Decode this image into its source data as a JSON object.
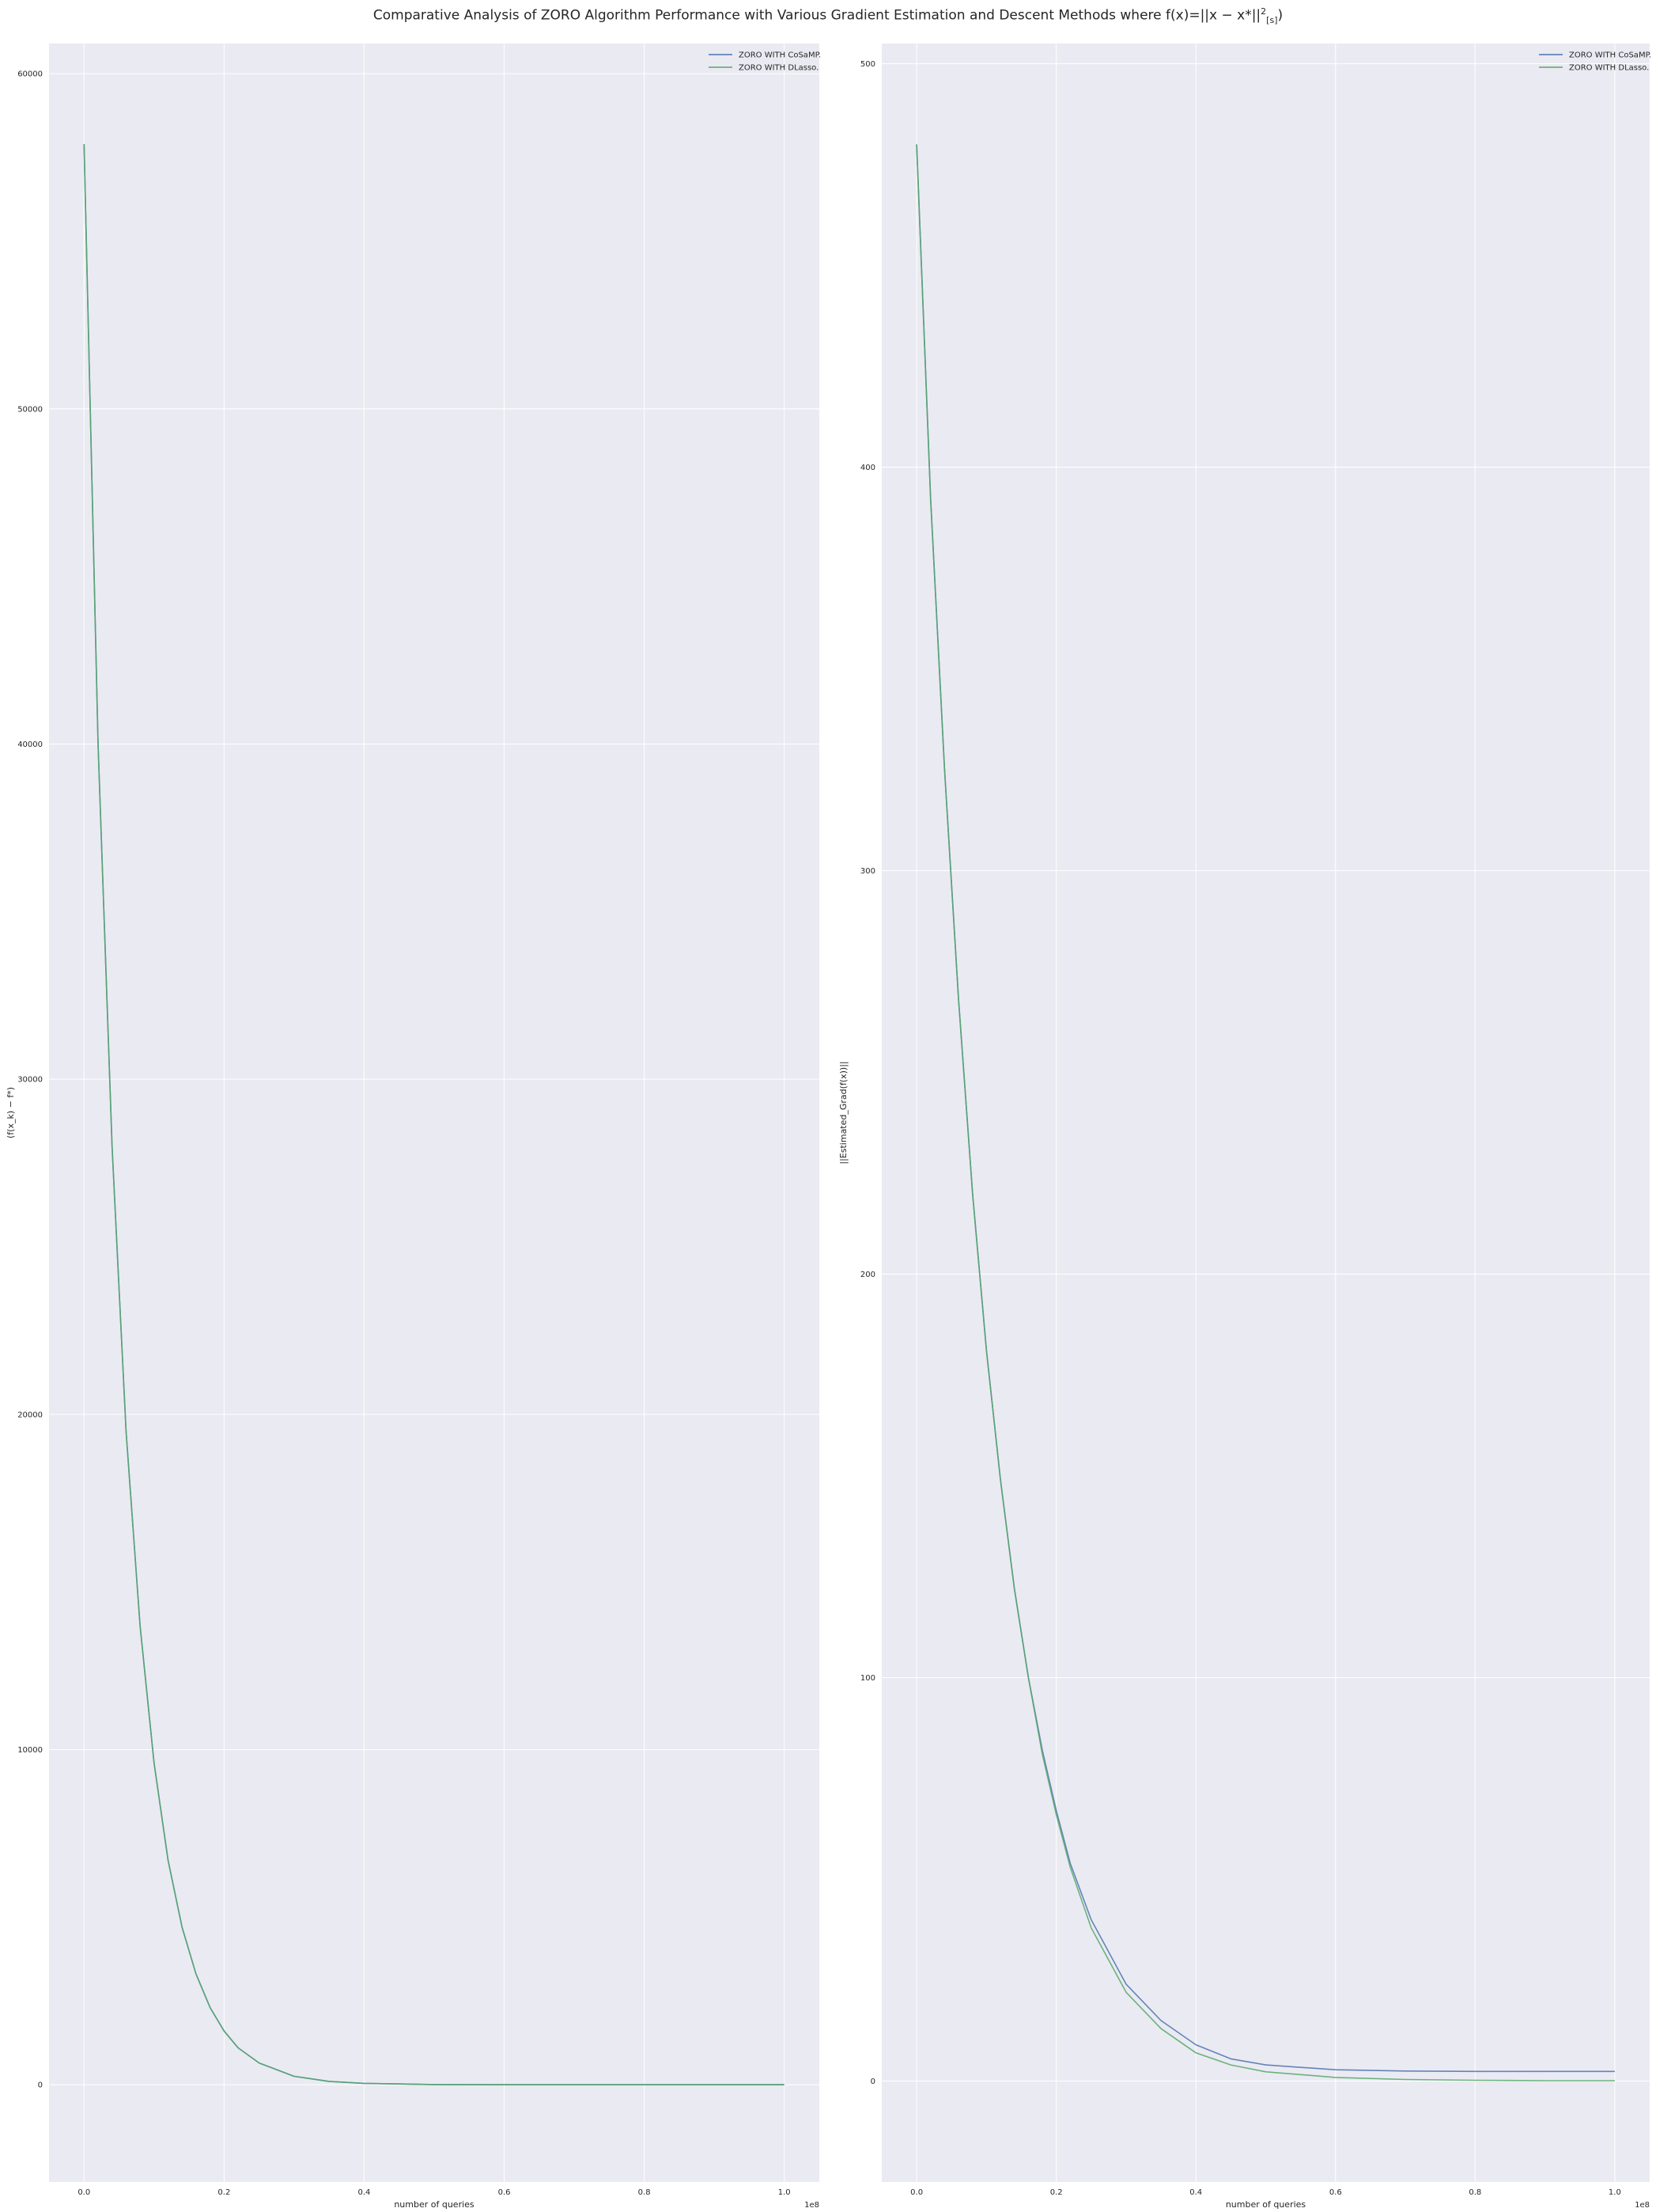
{
  "figure": {
    "title_text": "Comparative Analysis of ZORO Algorithm Performance with Various Gradient Estimation and Descent Methods where f(x)=||x − x*||",
    "title_sup": "2",
    "title_sub": "[s]",
    "title_tail": ")"
  },
  "colors": {
    "plot_background": "#EAEAF2",
    "grid": "#FFFFFF",
    "cosamp": "#4C72B0",
    "dlasso": "#55A868"
  },
  "chart_data": [
    {
      "type": "line",
      "title": "",
      "xlabel": "number of queries",
      "ylabel": "(f(x_k) − f*)",
      "x_offset_label": "1e8",
      "xlim": [
        -0.05,
        1.05
      ],
      "ylim": [
        -2900,
        60900
      ],
      "xticks": [
        0.0,
        0.2,
        0.4,
        0.6,
        0.8,
        1.0
      ],
      "xtick_labels": [
        "0.0",
        "0.2",
        "0.4",
        "0.6",
        "0.8",
        "1.0"
      ],
      "yticks": [
        0,
        10000,
        20000,
        30000,
        40000,
        50000,
        60000
      ],
      "ytick_labels": [
        "0",
        "10000",
        "20000",
        "30000",
        "40000",
        "50000",
        "60000"
      ],
      "grid": true,
      "legend": "top-right",
      "series": [
        {
          "name": "ZORO WITH CoSaMP.",
          "color": "#4C72B0",
          "x": [
            0.0,
            0.02,
            0.04,
            0.06,
            0.08,
            0.1,
            0.12,
            0.14,
            0.16,
            0.18,
            0.2,
            0.22,
            0.25,
            0.3,
            0.35,
            0.4,
            0.5,
            0.6,
            0.7,
            0.8,
            0.9,
            1.0
          ],
          "y": [
            57900,
            40000,
            28000,
            19500,
            13700,
            9600,
            6700,
            4700,
            3300,
            2300,
            1600,
            1100,
            650,
            250,
            100,
            40,
            6,
            1,
            0,
            0,
            0,
            0
          ]
        },
        {
          "name": "ZORO WITH DLasso.",
          "color": "#55A868",
          "x": [
            0.0,
            0.02,
            0.04,
            0.06,
            0.08,
            0.1,
            0.12,
            0.14,
            0.16,
            0.18,
            0.2,
            0.22,
            0.25,
            0.3,
            0.35,
            0.4,
            0.5,
            0.6,
            0.7,
            0.8,
            0.9,
            1.0
          ],
          "y": [
            57900,
            40000,
            28000,
            19500,
            13700,
            9600,
            6700,
            4700,
            3300,
            2300,
            1600,
            1100,
            650,
            250,
            100,
            40,
            6,
            1,
            0,
            0,
            0,
            0
          ]
        }
      ]
    },
    {
      "type": "line",
      "title": "",
      "xlabel": "number of queries",
      "ylabel": "||Estimated_Grad(f(x))||",
      "x_offset_label": "1e8",
      "xlim": [
        -0.05,
        1.05
      ],
      "ylim": [
        -25,
        505
      ],
      "xticks": [
        0.0,
        0.2,
        0.4,
        0.6,
        0.8,
        1.0
      ],
      "xtick_labels": [
        "0.0",
        "0.2",
        "0.4",
        "0.6",
        "0.8",
        "1.0"
      ],
      "yticks": [
        0,
        100,
        200,
        300,
        400,
        500
      ],
      "ytick_labels": [
        "0",
        "100",
        "200",
        "300",
        "400",
        "500"
      ],
      "grid": true,
      "legend": "top-right",
      "series": [
        {
          "name": "ZORO WITH CoSaMP.",
          "color": "#4C72B0",
          "x": [
            0.0,
            0.02,
            0.04,
            0.06,
            0.08,
            0.1,
            0.12,
            0.14,
            0.16,
            0.18,
            0.2,
            0.22,
            0.25,
            0.3,
            0.35,
            0.4,
            0.45,
            0.5,
            0.6,
            0.7,
            0.8,
            0.9,
            1.0
          ],
          "y": [
            480,
            392,
            325,
            268,
            220,
            181,
            149,
            122,
            100,
            82,
            67,
            54,
            40,
            24,
            15,
            9,
            5.5,
            4,
            2.8,
            2.5,
            2.4,
            2.4,
            2.4
          ]
        },
        {
          "name": "ZORO WITH DLasso.",
          "color": "#55A868",
          "x": [
            0.0,
            0.02,
            0.04,
            0.06,
            0.08,
            0.1,
            0.12,
            0.14,
            0.16,
            0.18,
            0.2,
            0.22,
            0.25,
            0.3,
            0.35,
            0.4,
            0.45,
            0.5,
            0.6,
            0.7,
            0.8,
            0.9,
            1.0
          ],
          "y": [
            480,
            392,
            325,
            268,
            220,
            181,
            149,
            122,
            100,
            81,
            66,
            53,
            38,
            22,
            13,
            7,
            4,
            2.3,
            0.9,
            0.4,
            0.2,
            0.1,
            0.1
          ]
        }
      ]
    }
  ]
}
